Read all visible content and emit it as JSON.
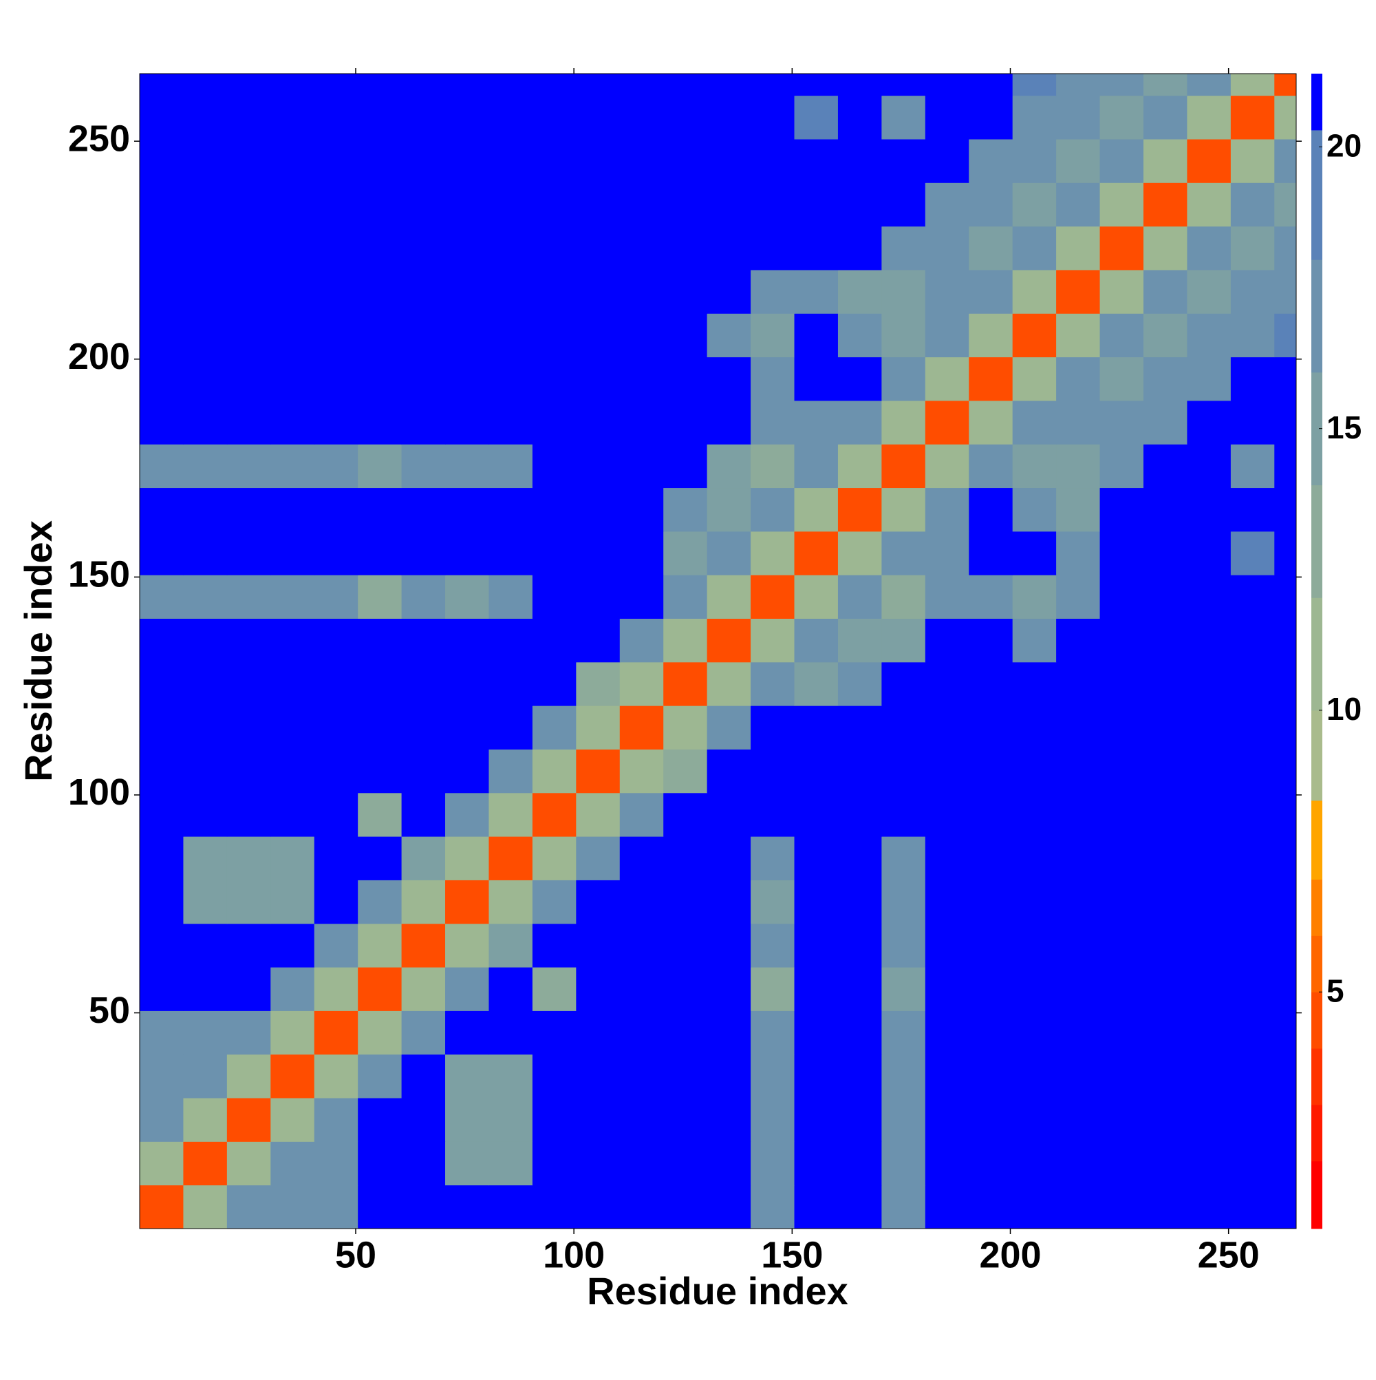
{
  "chart_data": {
    "type": "heatmap",
    "xlabel": "Residue index",
    "ylabel": "Residue index",
    "xbins": [
      0.5,
      10.5,
      20.5,
      30.5,
      40.5,
      50.5,
      60.5,
      70.5,
      80.5,
      90.5,
      100.5,
      110.5,
      120.5,
      130.5,
      140.5,
      150.5,
      160.5,
      170.5,
      180.5,
      190.5,
      200.5,
      210.5,
      220.5,
      230.5,
      240.5,
      250.5,
      260.5,
      265.5
    ],
    "ybins": [
      0.5,
      10.5,
      20.5,
      30.5,
      40.5,
      50.5,
      60.5,
      70.5,
      80.5,
      90.5,
      100.5,
      110.5,
      120.5,
      130.5,
      140.5,
      150.5,
      160.5,
      170.5,
      180.5,
      190.5,
      200.5,
      210.5,
      220.5,
      230.5,
      240.5,
      250.5,
      260.5,
      265.5
    ],
    "xlim": [
      0.5,
      265.5
    ],
    "ylim": [
      0.5,
      265.5
    ],
    "xticks": [
      50,
      100,
      150,
      200,
      250
    ],
    "yticks": [
      50,
      100,
      150,
      200,
      250
    ],
    "colorbar": {
      "bounds": [
        0.8,
        2,
        3,
        4,
        5,
        6,
        7,
        8.4,
        10,
        12,
        14,
        16,
        18,
        20.3,
        21.3
      ],
      "colors": [
        "#ff0000",
        "#ff1a00",
        "#ff3300",
        "#ff4d00",
        "#ff6600",
        "#ff8000",
        "#ffa500",
        "#a9bb8c",
        "#9db792",
        "#8dab9a",
        "#7da0a3",
        "#6c92ae",
        "#5a82b8",
        "#0000ff"
      ],
      "ticks": [
        5,
        10,
        15,
        20
      ]
    },
    "z": [
      [
        4,
        11,
        16,
        16,
        17,
        21,
        21,
        21,
        21,
        21,
        21,
        21,
        21,
        21,
        17,
        21,
        21,
        17,
        21,
        21,
        21,
        21,
        21,
        21,
        21,
        21,
        21
      ],
      [
        11,
        4,
        11,
        16,
        16,
        21,
        21,
        15,
        15,
        21,
        21,
        21,
        21,
        21,
        16,
        21,
        21,
        16,
        21,
        21,
        21,
        21,
        21,
        21,
        21,
        21,
        21
      ],
      [
        16,
        11,
        4,
        11,
        16,
        21,
        21,
        14,
        14,
        21,
        21,
        21,
        21,
        21,
        16,
        21,
        21,
        16,
        21,
        21,
        21,
        21,
        21,
        21,
        21,
        21,
        21
      ],
      [
        16,
        16,
        11,
        4,
        11,
        16,
        21,
        15,
        15,
        21,
        21,
        21,
        21,
        21,
        17,
        21,
        21,
        17,
        21,
        21,
        21,
        21,
        21,
        21,
        21,
        21,
        21
      ],
      [
        17,
        16,
        16,
        11,
        4,
        11,
        16,
        21,
        21,
        21,
        21,
        21,
        21,
        21,
        16,
        21,
        21,
        16,
        21,
        21,
        21,
        21,
        21,
        21,
        21,
        21,
        21
      ],
      [
        21,
        21,
        21,
        16,
        11,
        4,
        11,
        16,
        21,
        13,
        21,
        21,
        21,
        21,
        13,
        21,
        21,
        15,
        21,
        21,
        21,
        21,
        21,
        21,
        21,
        21,
        21
      ],
      [
        21,
        21,
        21,
        21,
        16,
        11,
        4,
        11,
        14,
        21,
        21,
        21,
        21,
        21,
        16,
        21,
        21,
        16,
        21,
        21,
        21,
        21,
        21,
        21,
        21,
        21,
        21
      ],
      [
        21,
        15,
        14,
        15,
        21,
        16,
        11,
        4,
        11,
        16,
        21,
        21,
        21,
        21,
        15,
        21,
        21,
        16,
        21,
        21,
        21,
        21,
        21,
        21,
        21,
        21,
        21
      ],
      [
        21,
        15,
        14,
        15,
        21,
        21,
        14,
        11,
        4,
        11,
        16,
        21,
        21,
        21,
        16,
        21,
        21,
        16,
        21,
        21,
        21,
        21,
        21,
        21,
        21,
        21,
        21
      ],
      [
        21,
        21,
        21,
        21,
        21,
        13,
        21,
        16,
        11,
        4,
        11,
        16,
        21,
        21,
        21,
        21,
        21,
        21,
        21,
        21,
        21,
        21,
        21,
        21,
        21,
        21,
        21
      ],
      [
        21,
        21,
        21,
        21,
        21,
        21,
        21,
        21,
        16,
        11,
        4,
        11,
        13,
        21,
        21,
        21,
        21,
        21,
        21,
        21,
        21,
        21,
        21,
        21,
        21,
        21,
        21
      ],
      [
        21,
        21,
        21,
        21,
        21,
        21,
        21,
        21,
        21,
        16,
        11,
        4,
        11,
        16,
        21,
        21,
        21,
        21,
        21,
        21,
        21,
        21,
        21,
        21,
        21,
        21,
        21
      ],
      [
        21,
        21,
        21,
        21,
        21,
        21,
        21,
        21,
        21,
        21,
        13,
        11,
        4,
        11,
        16,
        14,
        16,
        21,
        21,
        21,
        21,
        21,
        21,
        21,
        21,
        21,
        21
      ],
      [
        21,
        21,
        21,
        21,
        21,
        21,
        21,
        21,
        21,
        21,
        21,
        16,
        11,
        4,
        11,
        16,
        15,
        15,
        21,
        21,
        16,
        21,
        21,
        21,
        21,
        21,
        21
      ],
      [
        17,
        16,
        16,
        17,
        16,
        13,
        16,
        15,
        16,
        21,
        21,
        21,
        16,
        11,
        4,
        11,
        16,
        13,
        16,
        16,
        15,
        16,
        21,
        21,
        21,
        21,
        21
      ],
      [
        21,
        21,
        21,
        21,
        21,
        21,
        21,
        21,
        21,
        21,
        21,
        21,
        14,
        16,
        11,
        4,
        11,
        16,
        16,
        21,
        21,
        16,
        21,
        21,
        21,
        18,
        21
      ],
      [
        21,
        21,
        21,
        21,
        21,
        21,
        21,
        21,
        21,
        21,
        21,
        21,
        16,
        15,
        16,
        11,
        4,
        11,
        16,
        21,
        16,
        15,
        21,
        21,
        21,
        21,
        21
      ],
      [
        17,
        16,
        16,
        17,
        16,
        15,
        16,
        16,
        16,
        21,
        21,
        21,
        21,
        15,
        13,
        16,
        11,
        4,
        11,
        16,
        14,
        14,
        17,
        21,
        21,
        17,
        21
      ],
      [
        21,
        21,
        21,
        21,
        21,
        21,
        21,
        21,
        21,
        21,
        21,
        21,
        21,
        21,
        16,
        16,
        16,
        11,
        4,
        11,
        16,
        16,
        16,
        17,
        21,
        21,
        21
      ],
      [
        21,
        21,
        21,
        21,
        21,
        21,
        21,
        21,
        21,
        21,
        21,
        21,
        21,
        21,
        16,
        21,
        21,
        16,
        11,
        4,
        11,
        16,
        15,
        16,
        17,
        21,
        21
      ],
      [
        21,
        21,
        21,
        21,
        21,
        21,
        21,
        21,
        21,
        21,
        21,
        21,
        21,
        16,
        15,
        21,
        16,
        14,
        16,
        11,
        4,
        11,
        16,
        15,
        16,
        17,
        18
      ],
      [
        21,
        21,
        21,
        21,
        21,
        21,
        21,
        21,
        21,
        21,
        21,
        21,
        21,
        21,
        16,
        16,
        15,
        14,
        16,
        16,
        11,
        4,
        11,
        16,
        15,
        16,
        17
      ],
      [
        21,
        21,
        21,
        21,
        21,
        21,
        21,
        21,
        21,
        21,
        21,
        21,
        21,
        21,
        21,
        21,
        21,
        17,
        16,
        15,
        16,
        11,
        4,
        11,
        16,
        15,
        16
      ],
      [
        21,
        21,
        21,
        21,
        21,
        21,
        21,
        21,
        21,
        21,
        21,
        21,
        21,
        21,
        21,
        21,
        21,
        21,
        17,
        16,
        15,
        16,
        11,
        4,
        11,
        16,
        15
      ],
      [
        21,
        21,
        21,
        21,
        21,
        21,
        21,
        21,
        21,
        21,
        21,
        21,
        21,
        21,
        21,
        21,
        21,
        21,
        21,
        17,
        16,
        15,
        16,
        11,
        4,
        11,
        16
      ],
      [
        21,
        21,
        21,
        21,
        21,
        21,
        21,
        21,
        21,
        21,
        21,
        21,
        21,
        21,
        21,
        18,
        21,
        17,
        21,
        21,
        17,
        16,
        15,
        16,
        11,
        4,
        11
      ],
      [
        21,
        21,
        21,
        21,
        21,
        21,
        21,
        21,
        21,
        21,
        21,
        21,
        21,
        21,
        21,
        21,
        21,
        21,
        21,
        21,
        18,
        17,
        16,
        15,
        16,
        11,
        4
      ]
    ]
  }
}
